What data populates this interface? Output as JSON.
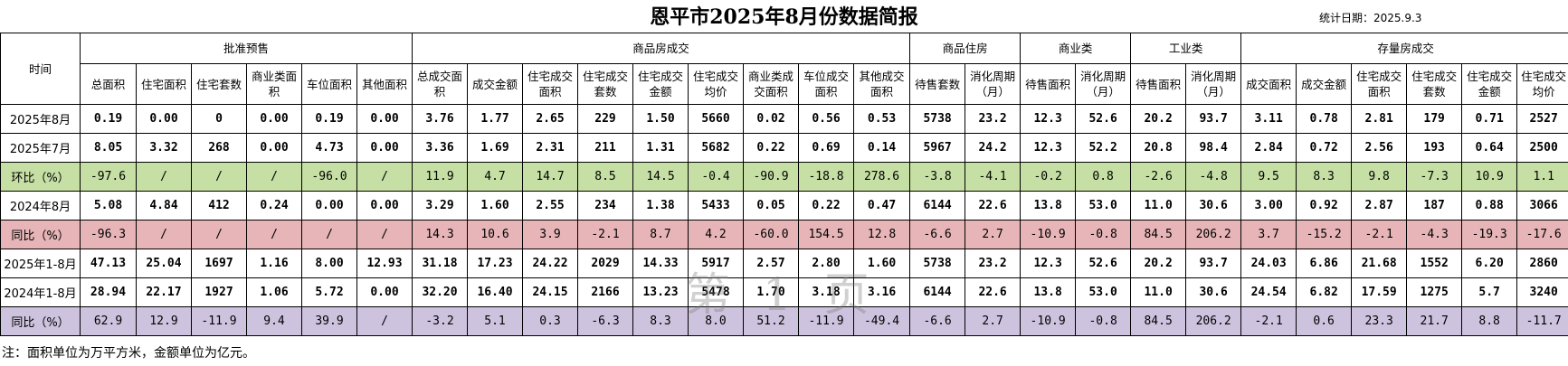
{
  "title": "恩平市2025年8月份数据简报",
  "stat_date": "统计日期：2025.9.3",
  "time_header": "时间",
  "groups": [
    "批准预售",
    "商品房成交",
    "商品住房",
    "商业类",
    "工业类",
    "存量房成交"
  ],
  "sub_headers": [
    "总面积",
    "住宅面积",
    "住宅套数",
    "商业类面积",
    "车位面积",
    "其他面积",
    "总成交面积",
    "成交金额",
    "住宅成交面积",
    "住宅成交套数",
    "住宅成交金额",
    "住宅成交均价",
    "商业类成交面积",
    "车位成交面积",
    "其他成交面积",
    "待售套数",
    "消化周期（月）",
    "待售面积",
    "消化周期（月）",
    "待售面积",
    "消化周期（月）",
    "成交面积",
    "成交金额",
    "住宅成交面积",
    "住宅成交套数",
    "住宅成交金额",
    "住宅成交均价"
  ],
  "rows": [
    {
      "label": "2025年8月",
      "cells": [
        "0.19",
        "0.00",
        "0",
        "0.00",
        "0.19",
        "0.00",
        "3.76",
        "1.77",
        "2.65",
        "229",
        "1.50",
        "5660",
        "0.02",
        "0.56",
        "0.53",
        "5738",
        "23.2",
        "12.3",
        "52.6",
        "20.2",
        "93.7",
        "3.11",
        "0.78",
        "2.81",
        "179",
        "0.71",
        "2527"
      ]
    },
    {
      "label": "2025年7月",
      "cells": [
        "8.05",
        "3.32",
        "268",
        "0.00",
        "4.73",
        "0.00",
        "3.36",
        "1.69",
        "2.31",
        "211",
        "1.31",
        "5682",
        "0.22",
        "0.69",
        "0.14",
        "5967",
        "24.2",
        "12.3",
        "52.2",
        "20.8",
        "98.4",
        "2.84",
        "0.72",
        "2.56",
        "193",
        "0.64",
        "2500"
      ]
    },
    {
      "label": "环比（%）",
      "cells": [
        "-97.6",
        "/",
        "/",
        "/",
        "-96.0",
        "/",
        "11.9",
        "4.7",
        "14.7",
        "8.5",
        "14.5",
        "-0.4",
        "-90.9",
        "-18.8",
        "278.6",
        "-3.8",
        "-4.1",
        "-0.2",
        "0.8",
        "-2.6",
        "-4.8",
        "9.5",
        "8.3",
        "9.8",
        "-7.3",
        "10.9",
        "1.1"
      ]
    },
    {
      "label": "2024年8月",
      "cells": [
        "5.08",
        "4.84",
        "412",
        "0.24",
        "0.00",
        "0.00",
        "3.29",
        "1.60",
        "2.55",
        "234",
        "1.38",
        "5433",
        "0.05",
        "0.22",
        "0.47",
        "6144",
        "22.6",
        "13.8",
        "53.0",
        "11.0",
        "30.6",
        "3.00",
        "0.92",
        "2.87",
        "187",
        "0.88",
        "3066"
      ]
    },
    {
      "label": "同比（%）",
      "cells": [
        "-96.3",
        "/",
        "/",
        "/",
        "/",
        "/",
        "14.3",
        "10.6",
        "3.9",
        "-2.1",
        "8.7",
        "4.2",
        "-60.0",
        "154.5",
        "12.8",
        "-6.6",
        "2.7",
        "-10.9",
        "-0.8",
        "84.5",
        "206.2",
        "3.7",
        "-15.2",
        "-2.1",
        "-4.3",
        "-19.3",
        "-17.6"
      ]
    },
    {
      "label": "2025年1-8月",
      "cells": [
        "47.13",
        "25.04",
        "1697",
        "1.16",
        "8.00",
        "12.93",
        "31.18",
        "17.23",
        "24.22",
        "2029",
        "14.33",
        "5917",
        "2.57",
        "2.80",
        "1.60",
        "5738",
        "23.2",
        "12.3",
        "52.6",
        "20.2",
        "93.7",
        "24.03",
        "6.86",
        "21.68",
        "1552",
        "6.20",
        "2860"
      ]
    },
    {
      "label": "2024年1-8月",
      "cells": [
        "28.94",
        "22.17",
        "1927",
        "1.06",
        "5.72",
        "0.00",
        "32.20",
        "16.40",
        "24.15",
        "2166",
        "13.23",
        "5478",
        "1.70",
        "3.18",
        "3.16",
        "6144",
        "22.6",
        "13.8",
        "53.0",
        "11.0",
        "30.6",
        "24.54",
        "6.82",
        "17.59",
        "1275",
        "5.7",
        "3240"
      ]
    },
    {
      "label": "同比（%）",
      "cells": [
        "62.9",
        "12.9",
        "-11.9",
        "9.4",
        "39.9",
        "/",
        "-3.2",
        "5.1",
        "0.3",
        "-6.3",
        "8.3",
        "8.0",
        "51.2",
        "-11.9",
        "-49.4",
        "-6.6",
        "2.7",
        "-10.9",
        "-0.8",
        "84.5",
        "206.2",
        "-2.1",
        "0.6",
        "23.3",
        "21.7",
        "8.8",
        "-11.7"
      ]
    }
  ],
  "note": "注：面积单位为万平方米，金额单位为亿元。",
  "watermark": "第 1 页"
}
